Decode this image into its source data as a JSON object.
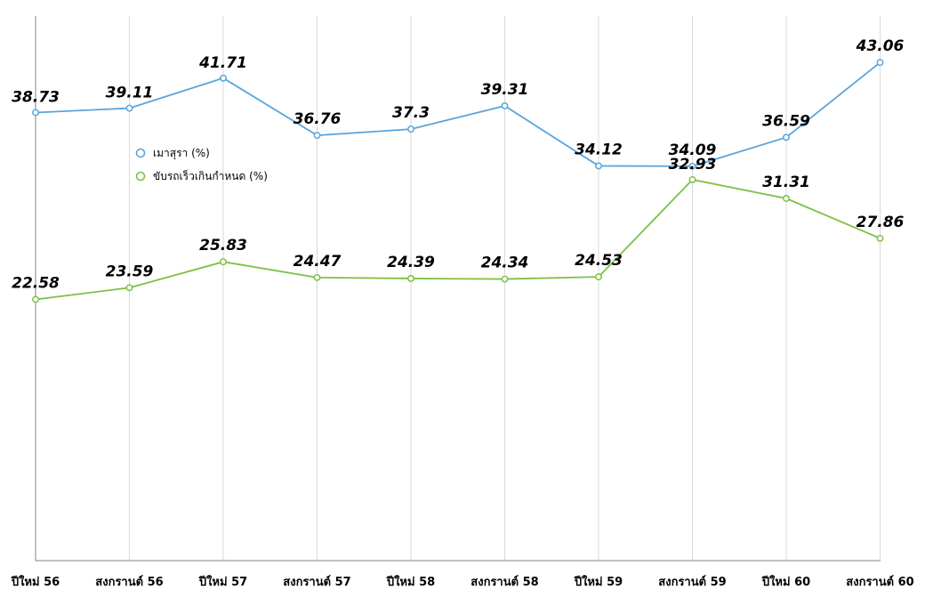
{
  "chart_data": {
    "type": "line",
    "categories": [
      "ปีใหม่ 56",
      "สงกรานต์ 56",
      "ปีใหม่ 57",
      "สงกรานต์ 57",
      "ปีใหม่ 58",
      "สงกรานต์ 58",
      "ปีใหม่ 59",
      "สงกรานต์ 59",
      "ปีใหม่ 60",
      "สงกรานต์ 60"
    ],
    "series": [
      {
        "name": "เมาสุรา (%)",
        "color": "#5aa4da",
        "values": [
          38.73,
          39.11,
          41.71,
          36.76,
          37.3,
          39.31,
          34.12,
          34.09,
          36.59,
          43.06
        ]
      },
      {
        "name": "ขับรถเร็วเกินกำหนด (%)",
        "color": "#7cc144",
        "values": [
          22.58,
          23.59,
          25.83,
          24.47,
          24.39,
          24.34,
          24.53,
          32.93,
          31.31,
          27.86
        ]
      }
    ],
    "ylim": [
      0,
      50
    ],
    "grid": "vertical",
    "legend": "upper-left"
  }
}
